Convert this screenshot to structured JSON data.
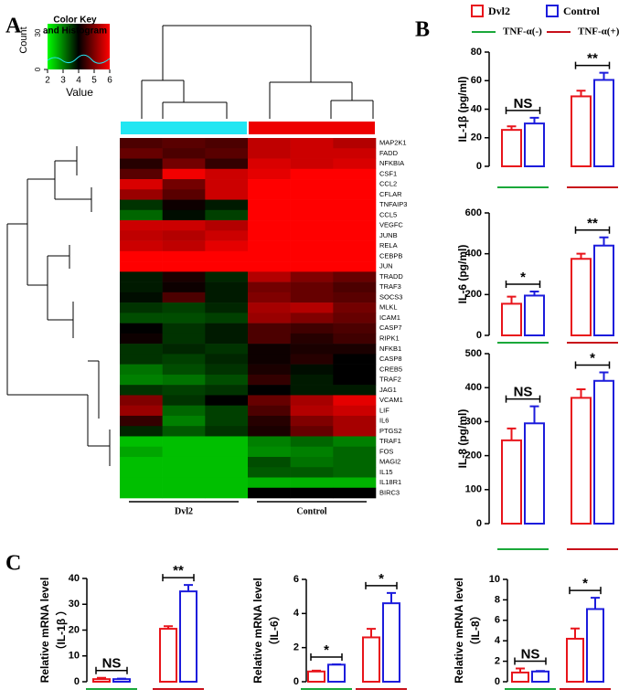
{
  "panel_labels": [
    "A",
    "B",
    "C"
  ],
  "legend": {
    "series": [
      {
        "name": "Dvl2",
        "color": "#e8141b"
      },
      {
        "name": "Control",
        "color": "#1c1cdc"
      }
    ],
    "groups": [
      {
        "name": "TNF-α(-)",
        "color": "#1aa83a"
      },
      {
        "name": "TNF-α(+)",
        "color": "#c8101a"
      }
    ]
  },
  "chart_data": [
    {
      "type": "heatmap",
      "colorkey": {
        "title": [
          "Color Key",
          "and Histogram"
        ],
        "xlabel": "Value",
        "ylabel": "Count",
        "xlim": [
          2,
          6
        ],
        "xticks": [
          2,
          3,
          4,
          5,
          6
        ],
        "yticks": [
          0,
          30
        ]
      },
      "column_groups": [
        {
          "name": "Dvl2",
          "color": "#22e6f2"
        },
        {
          "name": "Control",
          "color": "#ee0000"
        }
      ],
      "rows": [
        "MAP2K1",
        "FADD",
        "NFKBIA",
        "CSF1",
        "CCL2",
        "CFLAR",
        "TNFAIP3",
        "CCL5",
        "VEGFC",
        "JUNB",
        "RELA",
        "CEBPB",
        "JUN",
        "TRADD",
        "TRAF3",
        "SOCS3",
        "MLKL",
        "ICAM1",
        "CASP7",
        "RIPK1",
        "NFKB1",
        "CASP8",
        "CREB5",
        "TRAF2",
        "JAG1",
        "VCAM1",
        "LIF",
        "IL6",
        "PTGS2",
        "TRAF1",
        "FOS",
        "MAGI2",
        "IL15",
        "IL18R1",
        "BIRC3"
      ],
      "values": [
        [
          4.6,
          4.7,
          4.6,
          5.5,
          5.6,
          5.4
        ],
        [
          4.8,
          4.6,
          4.7,
          5.5,
          5.6,
          5.6
        ],
        [
          4.3,
          4.9,
          4.4,
          5.7,
          5.6,
          5.7
        ],
        [
          4.7,
          5.9,
          5.6,
          5.8,
          6,
          6
        ],
        [
          5.7,
          4.9,
          5.6,
          6,
          6,
          6
        ],
        [
          5.2,
          4.7,
          5.6,
          6,
          6,
          6
        ],
        [
          3.6,
          4.1,
          3.8,
          6,
          6,
          6
        ],
        [
          3.2,
          3.9,
          3.5,
          6,
          6,
          6
        ],
        [
          5.6,
          5.6,
          5.4,
          6,
          6,
          6
        ],
        [
          5.5,
          5.4,
          5.6,
          6,
          6,
          6
        ],
        [
          5.6,
          5.5,
          5.8,
          6,
          6,
          6
        ],
        [
          6,
          6,
          6,
          6,
          6,
          6
        ],
        [
          6,
          6,
          6,
          6,
          6,
          6
        ],
        [
          3.8,
          4.2,
          3.7,
          5.4,
          5.0,
          4.8
        ],
        [
          3.8,
          4.1,
          3.8,
          4.9,
          4.8,
          4.6
        ],
        [
          3.9,
          4.6,
          3.8,
          5.0,
          4.8,
          4.7
        ],
        [
          3.6,
          3.5,
          3.7,
          5.3,
          5.4,
          4.9
        ],
        [
          3.4,
          3.4,
          3.5,
          5.2,
          5.0,
          4.8
        ],
        [
          4.0,
          3.6,
          3.8,
          4.6,
          4.5,
          4.6
        ],
        [
          4.1,
          3.6,
          3.8,
          4.6,
          4.3,
          4.5
        ],
        [
          3.6,
          3.7,
          3.6,
          4.1,
          4.2,
          4.2
        ],
        [
          3.6,
          3.5,
          3.7,
          4.1,
          4.3,
          4.0
        ],
        [
          3.1,
          3.4,
          3.6,
          4.2,
          3.9,
          4.0
        ],
        [
          3.0,
          3.1,
          3.4,
          4.4,
          3.8,
          4.0
        ],
        [
          3.6,
          3.5,
          3.6,
          4.0,
          3.8,
          3.8
        ],
        [
          5.0,
          3.6,
          4.0,
          4.8,
          5.3,
          5.8
        ],
        [
          5.2,
          3.2,
          3.5,
          4.6,
          5.4,
          5.6
        ],
        [
          4.4,
          3.0,
          3.5,
          4.3,
          5.0,
          5.3
        ],
        [
          3.7,
          3.3,
          3.6,
          4.2,
          4.8,
          5.3
        ],
        [
          2.5,
          2.5,
          2.5,
          3.0,
          3.2,
          3.0
        ],
        [
          2.7,
          2.5,
          2.5,
          2.9,
          3.0,
          3.2
        ],
        [
          2.5,
          2.5,
          2.5,
          3.4,
          3.1,
          3.2
        ],
        [
          2.5,
          2.5,
          2.5,
          3.3,
          3.3,
          3.2
        ],
        [
          2.5,
          2.5,
          2.5,
          2.6,
          2.6,
          2.6
        ],
        [
          2.5,
          2.5,
          2.5,
          4.0,
          4.0,
          4.0
        ]
      ]
    },
    {
      "type": "bar",
      "ylabel": [
        "IL-1β  (pg/ml)"
      ],
      "ylim": [
        0,
        80
      ],
      "yticks": [
        0,
        20,
        40,
        60,
        80
      ],
      "series": [
        {
          "values": [
            25.5,
            49
          ],
          "errors": [
            2.5,
            4
          ]
        },
        {
          "values": [
            30,
            60.5
          ],
          "errors": [
            4,
            5
          ]
        }
      ],
      "annotations": [
        "NS",
        "**"
      ]
    },
    {
      "type": "bar",
      "ylabel": [
        "IL-6 (pg/ml)"
      ],
      "ylim": [
        0,
        600
      ],
      "yticks": [
        0,
        200,
        400,
        600
      ],
      "series": [
        {
          "values": [
            155,
            375
          ],
          "errors": [
            35,
            25
          ]
        },
        {
          "values": [
            195,
            440
          ],
          "errors": [
            20,
            40
          ]
        }
      ],
      "annotations": [
        "*",
        "**"
      ]
    },
    {
      "type": "bar",
      "ylabel": [
        "IL-8 (pg/ml)"
      ],
      "ylim": [
        0,
        500
      ],
      "yticks": [
        0,
        100,
        200,
        300,
        400,
        500
      ],
      "series": [
        {
          "values": [
            245,
            370
          ],
          "errors": [
            35,
            25
          ]
        },
        {
          "values": [
            295,
            420
          ],
          "errors": [
            50,
            25
          ]
        }
      ],
      "annotations": [
        "NS",
        "*"
      ]
    },
    {
      "type": "bar",
      "ylabel": [
        "Relative mRNA  level",
        "（IL-1β ）"
      ],
      "ylim": [
        0,
        40
      ],
      "yticks": [
        0,
        10,
        20,
        30,
        40
      ],
      "series": [
        {
          "values": [
            1,
            20.5
          ],
          "errors": [
            0.5,
            1
          ]
        },
        {
          "values": [
            1,
            35
          ],
          "errors": [
            0.2,
            2.5
          ]
        }
      ],
      "annotations": [
        "NS",
        "**"
      ]
    },
    {
      "type": "bar",
      "ylabel": [
        "Relative mRNA  level",
        "（IL-6）"
      ],
      "ylim": [
        0,
        6
      ],
      "yticks": [
        0,
        2,
        4,
        6
      ],
      "series": [
        {
          "values": [
            0.6,
            2.6
          ],
          "errors": [
            0.05,
            0.5
          ]
        },
        {
          "values": [
            1.0,
            4.6
          ],
          "errors": [
            0.02,
            0.6
          ]
        }
      ],
      "annotations": [
        "*",
        "*"
      ]
    },
    {
      "type": "bar",
      "ylabel": [
        "Relative mRNA  level",
        "（IL-8）"
      ],
      "ylim": [
        0,
        10
      ],
      "yticks": [
        0,
        2,
        4,
        6,
        8,
        10
      ],
      "series": [
        {
          "values": [
            0.9,
            4.2
          ],
          "errors": [
            0.4,
            1
          ]
        },
        {
          "values": [
            1.0,
            7.1
          ],
          "errors": [
            0.05,
            1.1
          ]
        }
      ],
      "annotations": [
        "NS",
        "*"
      ]
    }
  ]
}
